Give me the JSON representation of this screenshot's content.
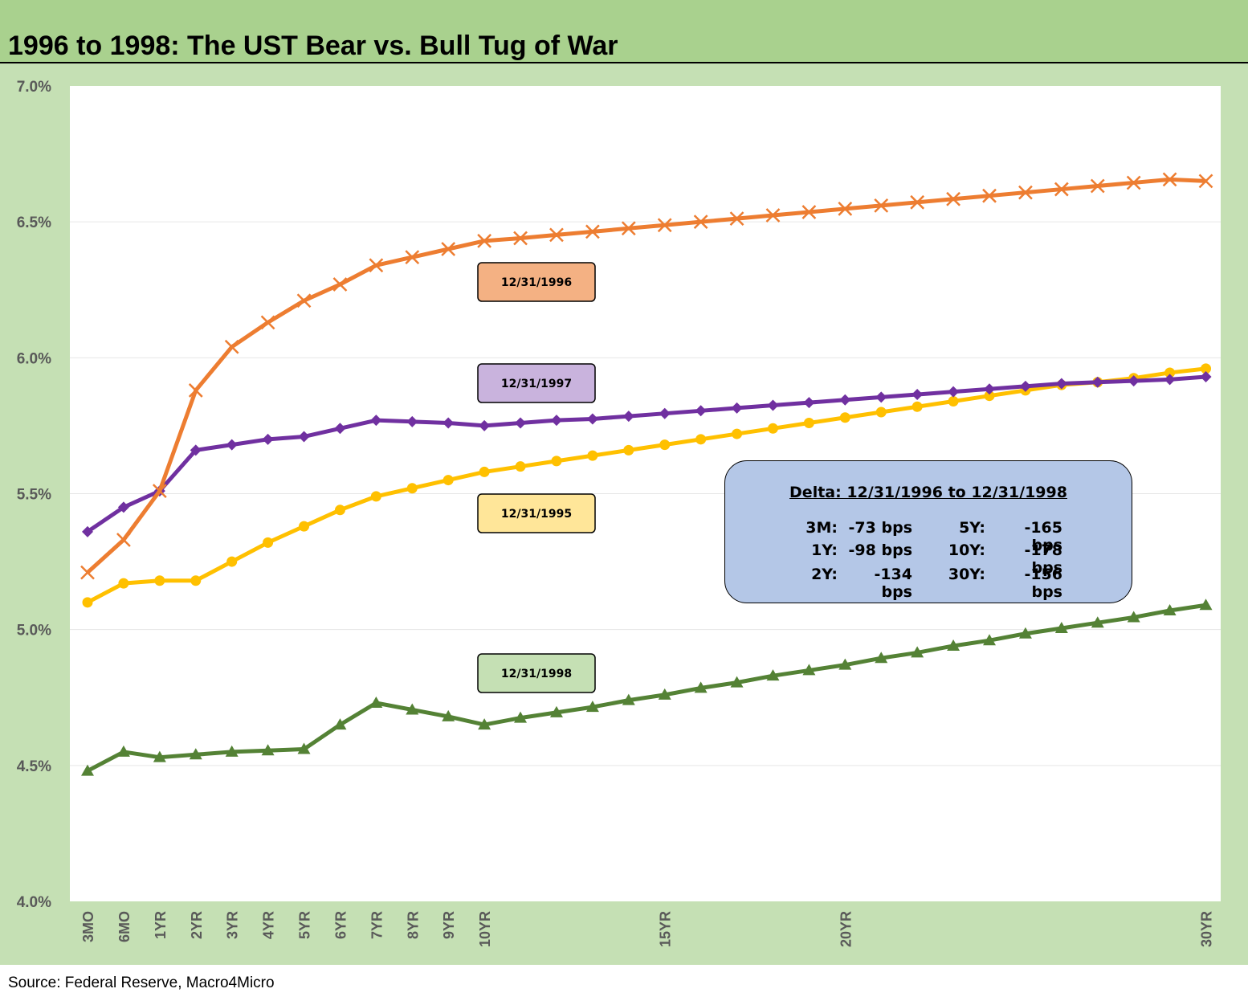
{
  "title": "1996 to 1998: The UST Bear vs. Bull Tug of War",
  "source": "Source: Federal Reserve, Macro4Micro",
  "delta_box": {
    "title": "Delta: 12/31/1996 to 12/31/1998",
    "rows": [
      {
        "left_label": "3M:",
        "left_value": "-73 bps",
        "right_label": "5Y:",
        "right_value": "-165 bps"
      },
      {
        "left_label": "1Y:",
        "left_value": "-98 bps",
        "right_label": "10Y:",
        "right_value": "-178 bps"
      },
      {
        "left_label": "2Y:",
        "left_value": "-134 bps",
        "right_label": "30Y:",
        "right_value": "-156 bps"
      }
    ]
  },
  "chart_data": {
    "type": "line",
    "title": "1996 to 1998: The UST Bear vs. Bull Tug of War",
    "xlabel": "",
    "ylabel": "",
    "ylim": [
      4.0,
      7.0
    ],
    "y_ticks": [
      "4.0%",
      "4.5%",
      "5.0%",
      "5.5%",
      "6.0%",
      "6.5%",
      "7.0%"
    ],
    "y_tick_values": [
      4.0,
      4.5,
      5.0,
      5.5,
      6.0,
      6.5,
      7.0
    ],
    "x_tick_labels": [
      {
        "index": 0,
        "label": "3MO"
      },
      {
        "index": 1,
        "label": "6MO"
      },
      {
        "index": 2,
        "label": "1YR"
      },
      {
        "index": 3,
        "label": "2YR"
      },
      {
        "index": 4,
        "label": "3YR"
      },
      {
        "index": 5,
        "label": "4YR"
      },
      {
        "index": 6,
        "label": "5YR"
      },
      {
        "index": 7,
        "label": "6YR"
      },
      {
        "index": 8,
        "label": "7YR"
      },
      {
        "index": 9,
        "label": "8YR"
      },
      {
        "index": 10,
        "label": "9YR"
      },
      {
        "index": 11,
        "label": "10YR"
      },
      {
        "index": 16,
        "label": "15YR"
      },
      {
        "index": 21,
        "label": "20YR"
      },
      {
        "index": 31,
        "label": "30YR"
      }
    ],
    "grid": true,
    "series": [
      {
        "name": "12/31/1996",
        "color": "#ed7d31",
        "label_bg": "#f4b183",
        "marker": "x",
        "values": [
          5.21,
          5.33,
          5.51,
          5.88,
          6.04,
          6.13,
          6.21,
          6.27,
          6.34,
          6.37,
          6.4,
          6.43,
          6.44,
          6.452,
          6.464,
          6.476,
          6.488,
          6.5,
          6.512,
          6.524,
          6.536,
          6.548,
          6.56,
          6.572,
          6.584,
          6.596,
          6.608,
          6.62,
          6.632,
          6.644,
          6.656,
          6.65
        ]
      },
      {
        "name": "12/31/1997",
        "color": "#7030a0",
        "label_bg": "#c9b3dd",
        "marker": "diamond",
        "values": [
          5.36,
          5.45,
          5.51,
          5.66,
          5.68,
          5.7,
          5.71,
          5.74,
          5.77,
          5.765,
          5.76,
          5.75,
          5.76,
          5.77,
          5.775,
          5.785,
          5.795,
          5.805,
          5.815,
          5.825,
          5.835,
          5.845,
          5.855,
          5.865,
          5.875,
          5.885,
          5.895,
          5.905,
          5.91,
          5.915,
          5.92,
          5.93
        ]
      },
      {
        "name": "12/31/1995",
        "color": "#ffc000",
        "label_bg": "#ffe699",
        "marker": "circle",
        "values": [
          5.1,
          5.17,
          5.18,
          5.18,
          5.25,
          5.32,
          5.38,
          5.44,
          5.49,
          5.52,
          5.55,
          5.58,
          5.6,
          5.62,
          5.64,
          5.66,
          5.68,
          5.7,
          5.72,
          5.74,
          5.76,
          5.78,
          5.8,
          5.82,
          5.84,
          5.86,
          5.88,
          5.9,
          5.91,
          5.925,
          5.945,
          5.96
        ]
      },
      {
        "name": "12/31/1998",
        "color": "#548235",
        "label_bg": "#c5e0b4",
        "marker": "triangle",
        "values": [
          4.48,
          4.55,
          4.53,
          4.54,
          4.55,
          4.555,
          4.56,
          4.65,
          4.73,
          4.705,
          4.68,
          4.65,
          4.675,
          4.695,
          4.715,
          4.74,
          4.76,
          4.785,
          4.805,
          4.83,
          4.85,
          4.87,
          4.895,
          4.915,
          4.94,
          4.96,
          4.985,
          5.005,
          5.025,
          5.045,
          5.07,
          5.09
        ]
      }
    ]
  }
}
